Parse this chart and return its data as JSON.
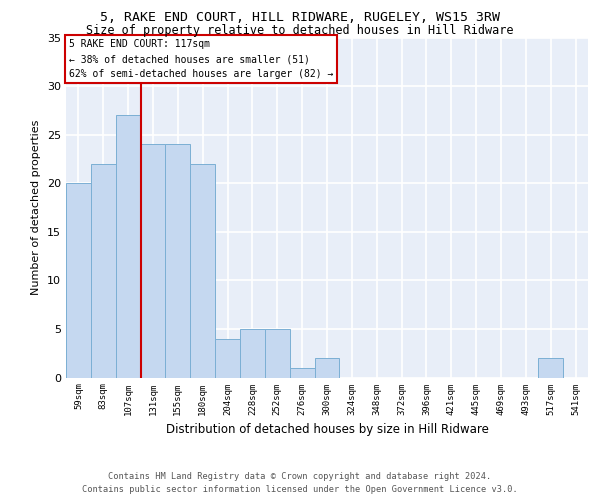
{
  "title": "5, RAKE END COURT, HILL RIDWARE, RUGELEY, WS15 3RW",
  "subtitle": "Size of property relative to detached houses in Hill Ridware",
  "xlabel": "Distribution of detached houses by size in Hill Ridware",
  "ylabel": "Number of detached properties",
  "bar_color": "#c5d8f0",
  "bar_edge_color": "#7bafd4",
  "background_color": "#e8eef8",
  "grid_color": "#ffffff",
  "categories": [
    "59sqm",
    "83sqm",
    "107sqm",
    "131sqm",
    "155sqm",
    "180sqm",
    "204sqm",
    "228sqm",
    "252sqm",
    "276sqm",
    "300sqm",
    "324sqm",
    "348sqm",
    "372sqm",
    "396sqm",
    "421sqm",
    "445sqm",
    "469sqm",
    "493sqm",
    "517sqm",
    "541sqm"
  ],
  "values": [
    20,
    22,
    27,
    24,
    24,
    22,
    4,
    5,
    5,
    1,
    2,
    0,
    0,
    0,
    0,
    0,
    0,
    0,
    0,
    2,
    0
  ],
  "ylim": [
    0,
    35
  ],
  "yticks": [
    0,
    5,
    10,
    15,
    20,
    25,
    30,
    35
  ],
  "property_label": "5 RAKE END COURT: 117sqm",
  "annotation_line1": "← 38% of detached houses are smaller (51)",
  "annotation_line2": "62% of semi-detached houses are larger (82) →",
  "vline_color": "#cc0000",
  "box_color": "#cc0000",
  "footer_line1": "Contains HM Land Registry data © Crown copyright and database right 2024.",
  "footer_line2": "Contains public sector information licensed under the Open Government Licence v3.0."
}
